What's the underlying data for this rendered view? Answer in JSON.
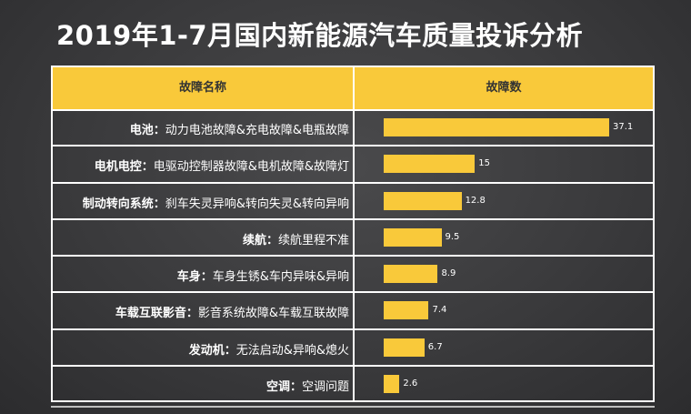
{
  "title": "2019年1-7月国内新能源汽车质量投诉分析",
  "table": {
    "col_headers": [
      "故障名称",
      "故障数"
    ]
  },
  "chart_data": {
    "type": "bar",
    "title": "2019年1-7月国内新能源汽车质量投诉分析",
    "xlabel": "故障数",
    "ylabel": "故障名称",
    "rows": [
      {
        "category": "电池",
        "detail": "动力电池故障&充电故障&电瓶故障",
        "value": 37.1
      },
      {
        "category": "电机电控",
        "detail": "电驱动控制器故障&电机故障&故障灯",
        "value": 15
      },
      {
        "category": "制动转向系统",
        "detail": "刹车失灵异响&转向失灵&转向异响",
        "value": 12.8
      },
      {
        "category": "续航",
        "detail": "续航里程不准",
        "value": 9.5
      },
      {
        "category": "车身",
        "detail": "车身生锈&车内异味&异响",
        "value": 8.9
      },
      {
        "category": "车载互联影音",
        "detail": "影音系统故障&车载互联故障",
        "value": 7.4
      },
      {
        "category": "发动机",
        "detail": "无法启动&异响&熄火",
        "value": 6.7
      },
      {
        "category": "空调",
        "detail": "空调问题",
        "value": 2.6
      }
    ],
    "separator": "：",
    "xlim": [
      0,
      40
    ],
    "bar_color": "#f9c93a",
    "grid": false,
    "legend": "none"
  }
}
